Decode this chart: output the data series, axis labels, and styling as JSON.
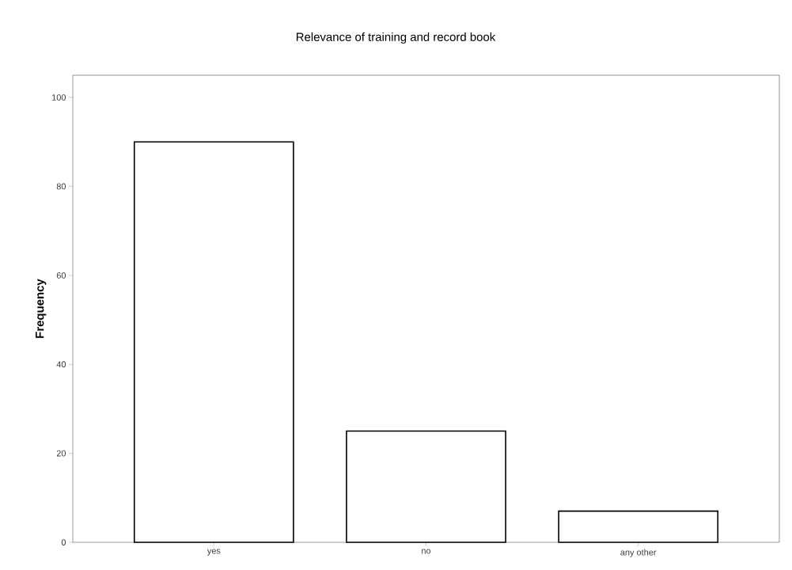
{
  "chart_data": {
    "type": "bar",
    "title": "Relevance of training and record book",
    "ylabel": "Frequency",
    "categories": [
      "yes",
      "no",
      "any other"
    ],
    "values": [
      90,
      25,
      7
    ],
    "color": "#ffffff",
    "ylim": [
      0,
      105
    ],
    "yticks": [
      0,
      20,
      40,
      60,
      80,
      100
    ],
    "grid": false
  }
}
